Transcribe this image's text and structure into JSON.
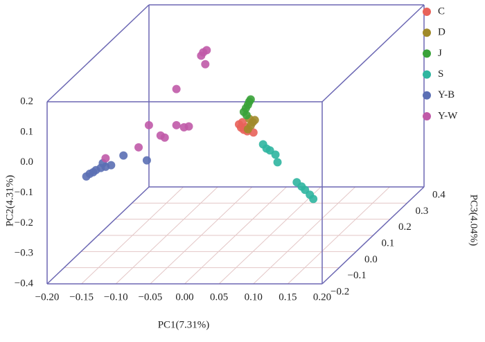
{
  "chart_data": {
    "type": "scatter3d",
    "xlabel": "PC1(7.31%)",
    "ylabel": "PC2(4.31%)",
    "zlabel": "PC3(4.04%)",
    "xlim": [
      -0.2,
      0.2
    ],
    "xticks": [
      {
        "value": -0.2,
        "label": "−0.20"
      },
      {
        "value": -0.15,
        "label": "−0.15"
      },
      {
        "value": -0.1,
        "label": "−0.10"
      },
      {
        "value": -0.05,
        "label": "−0.05"
      },
      {
        "value": 0,
        "label": "0.00"
      },
      {
        "value": 0.05,
        "label": "0.05"
      },
      {
        "value": 0.1,
        "label": "0.10"
      },
      {
        "value": 0.15,
        "label": "0.15"
      },
      {
        "value": 0.2,
        "label": "0.20"
      }
    ],
    "ylim": [
      -0.4,
      0.2
    ],
    "yticks": [
      {
        "value": -0.4,
        "label": "−0.4"
      },
      {
        "value": -0.3,
        "label": "−0.3"
      },
      {
        "value": -0.2,
        "label": "−0.2"
      },
      {
        "value": -0.1,
        "label": "−0.1"
      },
      {
        "value": 0,
        "label": "0.0"
      },
      0.1,
      0.2
    ],
    "zlim": [
      -0.2,
      0.4
    ],
    "zticks": [
      {
        "value": -0.2,
        "label": "−0.2"
      },
      {
        "value": -0.1,
        "label": "−0.1"
      },
      {
        "value": 0,
        "label": "0.0"
      },
      0.1,
      0.2,
      0.3,
      0.4
    ],
    "grid": true,
    "legend": "upper right",
    "series": [
      {
        "name": "C",
        "color": "#e8625a",
        "x": [
          0.005,
          0.008,
          0.012,
          0.017,
          0.026,
          0.01,
          0.015
        ],
        "y": [
          -0.034,
          -0.045,
          -0.052,
          -0.057,
          -0.061,
          -0.027,
          -0.043
        ],
        "z": [
          0.1,
          0.1,
          0.1,
          0.1,
          0.1,
          0.1,
          0.1
        ]
      },
      {
        "name": "D",
        "color": "#a08a2a",
        "x": [
          0.02,
          0.025,
          0.022,
          0.018,
          0.028
        ],
        "y": [
          -0.016,
          -0.027,
          -0.038,
          -0.05,
          -0.02
        ],
        "z": [
          0.1,
          0.1,
          0.1,
          0.1,
          0.1
        ]
      },
      {
        "name": "J",
        "color": "#3aa23a",
        "x": [
          0.012,
          0.015,
          0.018,
          0.02,
          0.022,
          0.016
        ],
        "y": [
          0.007,
          0.019,
          0.03,
          0.041,
          0.048,
          -0.004
        ],
        "z": [
          0.1,
          0.1,
          0.1,
          0.1,
          0.1,
          0.1
        ]
      },
      {
        "name": "S",
        "color": "#2fb5a0",
        "x": [
          0.04,
          0.045,
          0.05,
          0.058,
          0.061,
          0.089,
          0.096,
          0.101,
          0.108,
          0.113
        ],
        "y": [
          -0.1,
          -0.114,
          -0.12,
          -0.134,
          -0.159,
          -0.225,
          -0.239,
          -0.25,
          -0.266,
          -0.28
        ],
        "z": [
          0.1,
          0.1,
          0.1,
          0.1,
          0.1,
          0.1,
          0.1,
          0.1,
          0.1,
          0.1
        ]
      },
      {
        "name": "Y-B",
        "color": "#5b6fb4",
        "x": [
          -0.18,
          -0.175,
          -0.166,
          -0.159,
          -0.152,
          -0.144,
          -0.17,
          -0.126,
          -0.092,
          -0.156
        ],
        "y": [
          -0.126,
          -0.117,
          -0.105,
          -0.098,
          -0.094,
          -0.089,
          -0.112,
          -0.057,
          -0.073,
          -0.082
        ],
        "z": [
          -0.05,
          -0.05,
          -0.05,
          -0.05,
          -0.05,
          -0.05,
          -0.05,
          -0.05,
          -0.05,
          -0.05
        ]
      },
      {
        "name": "Y-W",
        "color": "#c05aa8",
        "x": [
          -0.152,
          -0.104,
          -0.089,
          -0.072,
          -0.066,
          -0.049,
          -0.038,
          -0.031,
          -0.049,
          -0.01,
          -0.005,
          -0.007,
          -0.013
        ],
        "y": [
          -0.066,
          -0.03,
          0.043,
          0.009,
          0.002,
          0.043,
          0.036,
          0.039,
          0.162,
          0.283,
          0.29,
          0.244,
          0.272
        ],
        "z": [
          -0.05,
          -0.05,
          -0.05,
          -0.05,
          -0.05,
          -0.05,
          -0.05,
          -0.05,
          -0.05,
          -0.05,
          -0.05,
          -0.05,
          -0.05
        ]
      }
    ]
  }
}
